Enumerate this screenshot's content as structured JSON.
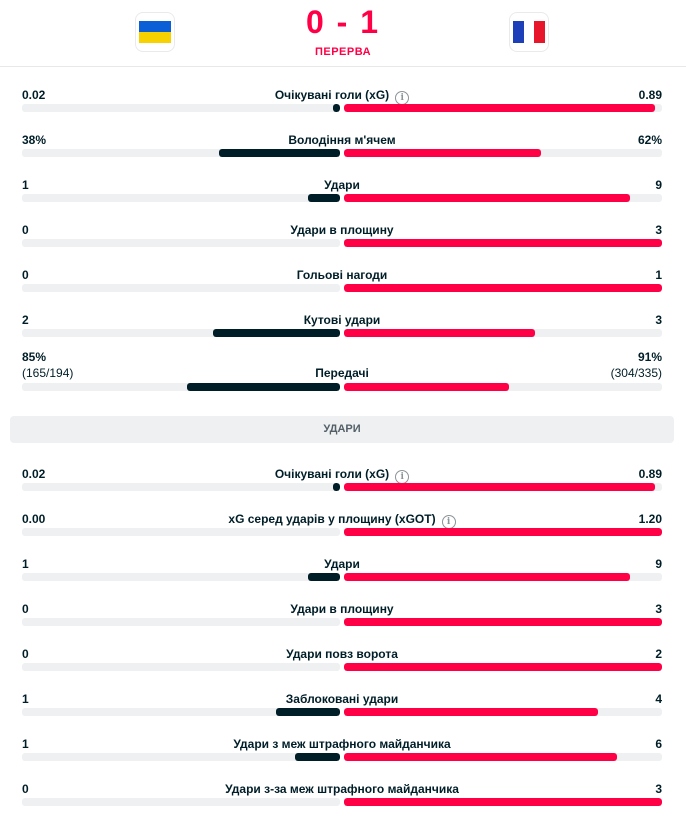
{
  "header": {
    "home_flag": "ukraine-flag",
    "away_flag": "france-flag",
    "score": "0 - 1",
    "status": "ПЕРЕРВА"
  },
  "colors": {
    "home": "#001e28",
    "away": "#ff0046",
    "track": "#eef0f1"
  },
  "stats_top": [
    {
      "label": "Очікувані голи (xG)",
      "info": true,
      "home": "0.02",
      "away": "0.89",
      "home_ratio": 0.022,
      "away_ratio": 0.978
    },
    {
      "label": "Володіння м'ячем",
      "home": "38%",
      "away": "62%",
      "home_ratio": 0.38,
      "away_ratio": 0.62
    },
    {
      "label": "Удари",
      "home": "1",
      "away": "9",
      "home_ratio": 0.1,
      "away_ratio": 0.9
    },
    {
      "label": "Удари в площину",
      "home": "0",
      "away": "3",
      "home_ratio": 0.0,
      "away_ratio": 1.0
    },
    {
      "label": "Гольові нагоди",
      "home": "0",
      "away": "1",
      "home_ratio": 0.0,
      "away_ratio": 1.0
    },
    {
      "label": "Кутові удари",
      "home": "2",
      "away": "3",
      "home_ratio": 0.4,
      "away_ratio": 0.6
    }
  ],
  "passes": {
    "label": "Передачі",
    "home": "85%",
    "home_sub": "(165/194)",
    "away": "91%",
    "away_sub": "(304/335)",
    "home_ratio": 0.48,
    "away_ratio": 0.52
  },
  "section_title": "УДАРИ",
  "stats_shots": [
    {
      "label": "Очікувані голи (xG)",
      "info": true,
      "home": "0.02",
      "away": "0.89",
      "home_ratio": 0.022,
      "away_ratio": 0.978
    },
    {
      "label": "xG серед ударів у площину (xGOT)",
      "info": true,
      "home": "0.00",
      "away": "1.20",
      "home_ratio": 0.0,
      "away_ratio": 1.0
    },
    {
      "label": "Удари",
      "home": "1",
      "away": "9",
      "home_ratio": 0.1,
      "away_ratio": 0.9
    },
    {
      "label": "Удари в площину",
      "home": "0",
      "away": "3",
      "home_ratio": 0.0,
      "away_ratio": 1.0
    },
    {
      "label": "Удари повз ворота",
      "home": "0",
      "away": "2",
      "home_ratio": 0.0,
      "away_ratio": 1.0
    },
    {
      "label": "Заблоковані удари",
      "home": "1",
      "away": "4",
      "home_ratio": 0.2,
      "away_ratio": 0.8
    },
    {
      "label": "Удари з меж штрафного майданчика",
      "home": "1",
      "away": "6",
      "home_ratio": 0.143,
      "away_ratio": 0.857
    },
    {
      "label": "Удари з-за меж штрафного майданчика",
      "home": "0",
      "away": "3",
      "home_ratio": 0.0,
      "away_ratio": 1.0
    }
  ]
}
